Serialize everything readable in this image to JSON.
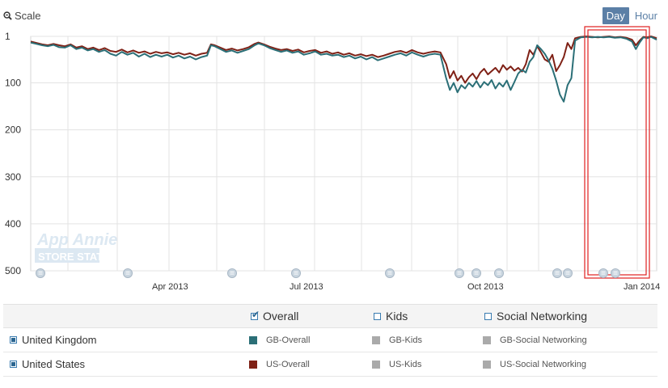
{
  "toolbar": {
    "scale_label": "Scale"
  },
  "granularity": {
    "day": "Day",
    "hour": "Hour",
    "active": "day"
  },
  "colors": {
    "gb": "#2b6f77",
    "us": "#7f2116",
    "grid": "#e3e3e3",
    "highlight": "#e02020",
    "inactive": "#aaaaaa"
  },
  "chart_data": {
    "type": "line",
    "y_axis": {
      "reversed": true,
      "range": [
        1,
        500
      ],
      "ticks": [
        "1",
        "100",
        "200",
        "300",
        "400",
        "500"
      ]
    },
    "x_axis": {
      "ticks": [
        "Apr 2013",
        "Jul 2013",
        "Oct 2013",
        "Jan 2014"
      ]
    },
    "watermark": {
      "line1": "App Annie",
      "line2": "STORE STATS"
    },
    "series": [
      {
        "name": "US-Overall",
        "points": [
          [
            0,
            12
          ],
          [
            3,
            15
          ],
          [
            6,
            18
          ],
          [
            9,
            20
          ],
          [
            12,
            17
          ],
          [
            15,
            20
          ],
          [
            18,
            22
          ],
          [
            21,
            18
          ],
          [
            24,
            25
          ],
          [
            27,
            22
          ],
          [
            30,
            28
          ],
          [
            33,
            25
          ],
          [
            36,
            30
          ],
          [
            39,
            26
          ],
          [
            42,
            32
          ],
          [
            45,
            34
          ],
          [
            48,
            29
          ],
          [
            51,
            35
          ],
          [
            54,
            31
          ],
          [
            57,
            36
          ],
          [
            60,
            33
          ],
          [
            63,
            38
          ],
          [
            66,
            34
          ],
          [
            69,
            37
          ],
          [
            72,
            35
          ],
          [
            75,
            39
          ],
          [
            78,
            36
          ],
          [
            81,
            40
          ],
          [
            84,
            37
          ],
          [
            87,
            42
          ],
          [
            90,
            38
          ],
          [
            93,
            36
          ],
          [
            95,
            18
          ],
          [
            97,
            20
          ],
          [
            100,
            25
          ],
          [
            103,
            30
          ],
          [
            106,
            27
          ],
          [
            109,
            31
          ],
          [
            112,
            28
          ],
          [
            115,
            24
          ],
          [
            118,
            17
          ],
          [
            120,
            14
          ],
          [
            123,
            18
          ],
          [
            126,
            23
          ],
          [
            129,
            27
          ],
          [
            132,
            30
          ],
          [
            135,
            28
          ],
          [
            138,
            32
          ],
          [
            141,
            29
          ],
          [
            144,
            35
          ],
          [
            147,
            32
          ],
          [
            150,
            30
          ],
          [
            153,
            36
          ],
          [
            156,
            33
          ],
          [
            159,
            38
          ],
          [
            162,
            35
          ],
          [
            165,
            40
          ],
          [
            168,
            37
          ],
          [
            171,
            42
          ],
          [
            174,
            39
          ],
          [
            177,
            43
          ],
          [
            180,
            40
          ],
          [
            183,
            45
          ],
          [
            186,
            42
          ],
          [
            189,
            38
          ],
          [
            192,
            34
          ],
          [
            195,
            32
          ],
          [
            198,
            36
          ],
          [
            201,
            30
          ],
          [
            204,
            35
          ],
          [
            207,
            38
          ],
          [
            210,
            35
          ],
          [
            213,
            33
          ],
          [
            216,
            35
          ],
          [
            219,
            60
          ],
          [
            221,
            90
          ],
          [
            223,
            75
          ],
          [
            225,
            95
          ],
          [
            227,
            85
          ],
          [
            229,
            100
          ],
          [
            231,
            88
          ],
          [
            233,
            80
          ],
          [
            235,
            92
          ],
          [
            237,
            78
          ],
          [
            239,
            70
          ],
          [
            241,
            82
          ],
          [
            243,
            75
          ],
          [
            245,
            68
          ],
          [
            247,
            78
          ],
          [
            249,
            62
          ],
          [
            251,
            72
          ],
          [
            253,
            65
          ],
          [
            255,
            74
          ],
          [
            257,
            68
          ],
          [
            259,
            76
          ],
          [
            261,
            60
          ],
          [
            263,
            30
          ],
          [
            265,
            40
          ],
          [
            267,
            22
          ],
          [
            269,
            35
          ],
          [
            271,
            50
          ],
          [
            273,
            55
          ],
          [
            275,
            40
          ],
          [
            277,
            75
          ],
          [
            279,
            62
          ],
          [
            281,
            45
          ],
          [
            283,
            15
          ],
          [
            285,
            28
          ],
          [
            287,
            5
          ],
          [
            290,
            2
          ],
          [
            293,
            1
          ],
          [
            296,
            2
          ],
          [
            299,
            3
          ],
          [
            302,
            2
          ],
          [
            305,
            1
          ],
          [
            308,
            3
          ],
          [
            311,
            2
          ],
          [
            314,
            4
          ],
          [
            317,
            8
          ],
          [
            319,
            20
          ],
          [
            321,
            10
          ],
          [
            323,
            2
          ],
          [
            325,
            3
          ],
          [
            327,
            1
          ],
          [
            330,
            5
          ]
        ]
      },
      {
        "name": "GB-Overall",
        "points": [
          [
            0,
            14
          ],
          [
            3,
            17
          ],
          [
            6,
            20
          ],
          [
            9,
            22
          ],
          [
            12,
            19
          ],
          [
            15,
            24
          ],
          [
            18,
            25
          ],
          [
            21,
            20
          ],
          [
            24,
            28
          ],
          [
            27,
            25
          ],
          [
            30,
            31
          ],
          [
            33,
            28
          ],
          [
            36,
            34
          ],
          [
            39,
            30
          ],
          [
            42,
            38
          ],
          [
            45,
            42
          ],
          [
            48,
            34
          ],
          [
            51,
            40
          ],
          [
            54,
            36
          ],
          [
            57,
            44
          ],
          [
            60,
            38
          ],
          [
            63,
            45
          ],
          [
            66,
            40
          ],
          [
            69,
            44
          ],
          [
            72,
            40
          ],
          [
            75,
            46
          ],
          [
            78,
            42
          ],
          [
            81,
            48
          ],
          [
            84,
            44
          ],
          [
            87,
            50
          ],
          [
            90,
            45
          ],
          [
            93,
            42
          ],
          [
            95,
            20
          ],
          [
            97,
            22
          ],
          [
            100,
            28
          ],
          [
            103,
            34
          ],
          [
            106,
            31
          ],
          [
            109,
            36
          ],
          [
            112,
            32
          ],
          [
            115,
            28
          ],
          [
            118,
            20
          ],
          [
            120,
            16
          ],
          [
            123,
            20
          ],
          [
            126,
            26
          ],
          [
            129,
            30
          ],
          [
            132,
            34
          ],
          [
            135,
            31
          ],
          [
            138,
            36
          ],
          [
            141,
            33
          ],
          [
            144,
            40
          ],
          [
            147,
            37
          ],
          [
            150,
            33
          ],
          [
            153,
            40
          ],
          [
            156,
            38
          ],
          [
            159,
            42
          ],
          [
            162,
            40
          ],
          [
            165,
            45
          ],
          [
            168,
            42
          ],
          [
            171,
            48
          ],
          [
            174,
            44
          ],
          [
            177,
            50
          ],
          [
            180,
            45
          ],
          [
            183,
            52
          ],
          [
            186,
            48
          ],
          [
            189,
            44
          ],
          [
            192,
            40
          ],
          [
            195,
            37
          ],
          [
            198,
            42
          ],
          [
            201,
            35
          ],
          [
            204,
            40
          ],
          [
            207,
            44
          ],
          [
            210,
            40
          ],
          [
            213,
            38
          ],
          [
            216,
            40
          ],
          [
            219,
            90
          ],
          [
            221,
            115
          ],
          [
            223,
            100
          ],
          [
            225,
            120
          ],
          [
            227,
            105
          ],
          [
            229,
            112
          ],
          [
            231,
            100
          ],
          [
            233,
            108
          ],
          [
            235,
            96
          ],
          [
            237,
            110
          ],
          [
            239,
            98
          ],
          [
            241,
            105
          ],
          [
            243,
            94
          ],
          [
            245,
            112
          ],
          [
            247,
            100
          ],
          [
            249,
            108
          ],
          [
            251,
            95
          ],
          [
            253,
            115
          ],
          [
            255,
            98
          ],
          [
            257,
            80
          ],
          [
            259,
            72
          ],
          [
            261,
            78
          ],
          [
            263,
            55
          ],
          [
            265,
            45
          ],
          [
            267,
            20
          ],
          [
            269,
            28
          ],
          [
            271,
            38
          ],
          [
            273,
            52
          ],
          [
            275,
            70
          ],
          [
            277,
            95
          ],
          [
            279,
            125
          ],
          [
            281,
            140
          ],
          [
            283,
            105
          ],
          [
            285,
            90
          ],
          [
            287,
            10
          ],
          [
            290,
            3
          ],
          [
            293,
            2
          ],
          [
            296,
            3
          ],
          [
            299,
            2
          ],
          [
            302,
            3
          ],
          [
            305,
            2
          ],
          [
            308,
            4
          ],
          [
            311,
            3
          ],
          [
            314,
            6
          ],
          [
            317,
            12
          ],
          [
            319,
            28
          ],
          [
            321,
            14
          ],
          [
            323,
            3
          ],
          [
            325,
            5
          ],
          [
            327,
            2
          ],
          [
            330,
            8
          ]
        ]
      }
    ]
  },
  "legend": {
    "headers": [
      {
        "label": "Overall",
        "checked": true
      },
      {
        "label": "Kids",
        "checked": false
      },
      {
        "label": "Social Networking",
        "checked": false
      }
    ],
    "rows": [
      {
        "country": "United Kingdom",
        "overall": "GB-Overall",
        "kids": "GB-Kids",
        "social": "GB-Social Networking"
      },
      {
        "country": "United States",
        "overall": "US-Overall",
        "kids": "US-Kids",
        "social": "US-Social Networking"
      }
    ]
  }
}
